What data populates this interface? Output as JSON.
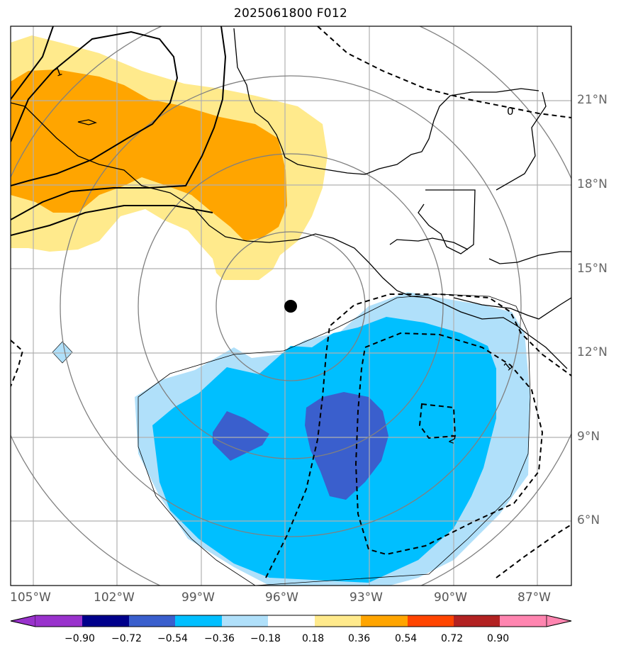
{
  "title": "2025061800 F012",
  "lat_labels": [
    "21°N",
    "18°N",
    "15°N",
    "12°N",
    "9°N",
    "6°N"
  ],
  "lon_labels": [
    "105°W",
    "102°W",
    "99°W",
    "96°W",
    "93°W",
    "90°W",
    "87°W"
  ],
  "colorbar": {
    "labels": [
      "−0.90",
      "−0.72",
      "−0.54",
      "−0.36",
      "−0.18",
      "0.18",
      "0.36",
      "0.54",
      "0.72",
      "0.90"
    ],
    "colors": [
      "#9932CC",
      "#00008B",
      "#3A5FCD",
      "#00BFFF",
      "#B0E0FA",
      "#FFFFFF",
      "#FFEA8C",
      "#FFA500",
      "#FF4500",
      "#B22222",
      "#FF85B0"
    ]
  },
  "contour_labels": {
    "positive": "1",
    "zero": "0",
    "negative_east": "1",
    "negative_inner": "2"
  },
  "storm_center": {
    "lat": 13.7,
    "lon": -95.9
  },
  "fill_colors": {
    "pos_light": "#FFEA8C",
    "pos_mid": "#FFA500",
    "neg_light": "#B0E0FA",
    "neg_mid": "#00BFFF",
    "neg_strong": "#3A5FCD"
  }
}
